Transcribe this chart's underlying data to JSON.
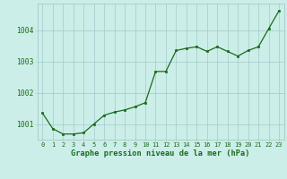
{
  "x": [
    0,
    1,
    2,
    3,
    4,
    5,
    6,
    7,
    8,
    9,
    10,
    11,
    12,
    13,
    14,
    15,
    16,
    17,
    18,
    19,
    20,
    21,
    22,
    23
  ],
  "y": [
    1001.35,
    1000.85,
    1000.68,
    1000.68,
    1000.72,
    1001.0,
    1001.28,
    1001.38,
    1001.45,
    1001.55,
    1001.68,
    1002.68,
    1002.68,
    1003.35,
    1003.42,
    1003.47,
    1003.32,
    1003.47,
    1003.32,
    1003.17,
    1003.35,
    1003.47,
    1004.05,
    1004.62
  ],
  "line_color": "#1a6b1a",
  "marker_color": "#1a6b1a",
  "bg_color": "#cceee8",
  "grid_color": "#aacfcf",
  "title": "Graphe pression niveau de la mer (hPa)",
  "ylim": [
    1000.5,
    1004.85
  ],
  "yticks": [
    1001,
    1002,
    1003,
    1004
  ],
  "xlim": [
    -0.5,
    23.5
  ],
  "xticks": [
    0,
    1,
    2,
    3,
    4,
    5,
    6,
    7,
    8,
    9,
    10,
    11,
    12,
    13,
    14,
    15,
    16,
    17,
    18,
    19,
    20,
    21,
    22,
    23
  ],
  "xtick_labels": [
    "0",
    "1",
    "2",
    "3",
    "4",
    "5",
    "6",
    "7",
    "8",
    "9",
    "10",
    "11",
    "12",
    "13",
    "14",
    "15",
    "16",
    "17",
    "18",
    "19",
    "20",
    "21",
    "22",
    "23"
  ]
}
